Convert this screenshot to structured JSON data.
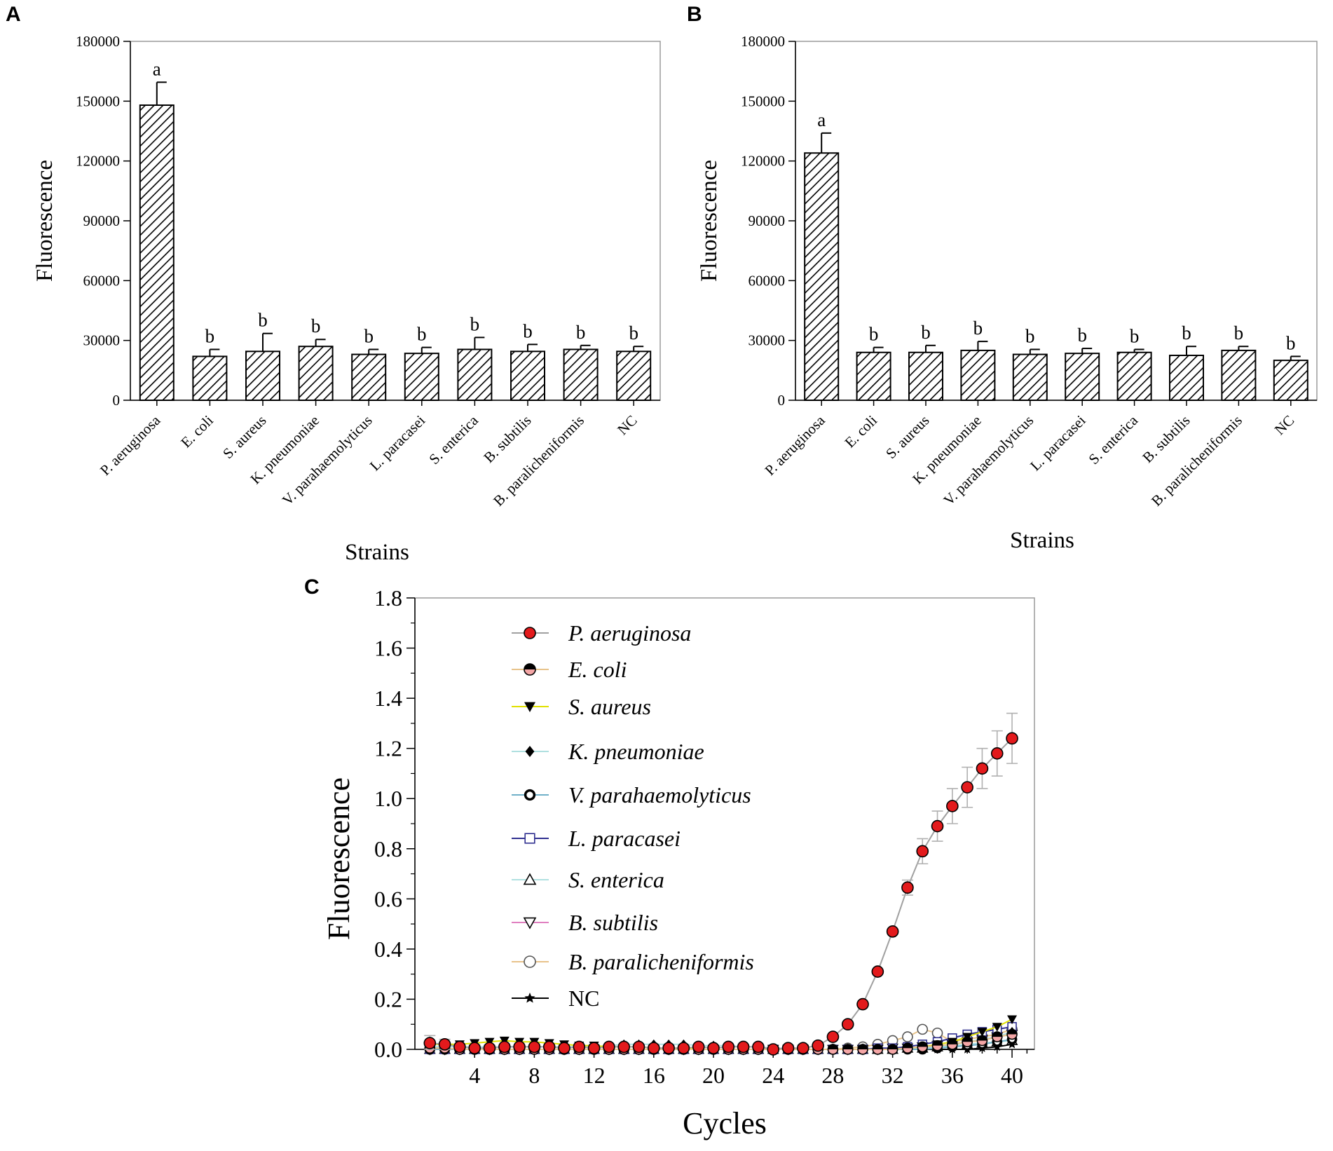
{
  "chart_data": [
    {
      "panel": "A",
      "type": "bar",
      "categories": [
        "P. aeruginosa",
        "E. coli",
        "S. aureus",
        "K. pneumoniae",
        "V. parahaemolyticus",
        "L. paracasei",
        "S. enterica",
        "B. subtilis",
        "B. paralicheniformis",
        "NC"
      ],
      "values": [
        148000,
        22000,
        24500,
        27000,
        23000,
        23500,
        25500,
        24500,
        25500,
        24500
      ],
      "errors": [
        11500,
        3500,
        9000,
        3500,
        2500,
        3000,
        6000,
        3500,
        2000,
        2500
      ],
      "significance": [
        "a",
        "b",
        "b",
        "b",
        "b",
        "b",
        "b",
        "b",
        "b",
        "b"
      ],
      "xlabel": "Strains",
      "ylabel": "Fluorescence",
      "ylim": [
        0,
        180000
      ],
      "yticks": [
        "0",
        "30000",
        "60000",
        "90000",
        "120000",
        "150000",
        "180000"
      ],
      "yticks_values": [
        0,
        30000,
        60000,
        90000,
        120000,
        150000,
        180000
      ]
    },
    {
      "panel": "B",
      "type": "bar",
      "categories": [
        "P. aeruginosa",
        "E. coli",
        "S. aureus",
        "K. pneumoniae",
        "V. parahaemolyticus",
        "L. paracasei",
        "S. enterica",
        "B. subtilis",
        "B. paralicheniformis",
        "NC"
      ],
      "values": [
        124000,
        24000,
        24000,
        25000,
        23000,
        23500,
        24000,
        22500,
        25000,
        20000
      ],
      "errors": [
        10000,
        2500,
        3500,
        4500,
        2500,
        2500,
        1500,
        4500,
        2000,
        2000
      ],
      "significance": [
        "a",
        "b",
        "b",
        "b",
        "b",
        "b",
        "b",
        "b",
        "b",
        "b"
      ],
      "xlabel": "Strains",
      "ylabel": "Fluorescence",
      "ylim": [
        0,
        180000
      ],
      "yticks": [
        "0",
        "30000",
        "60000",
        "90000",
        "120000",
        "150000",
        "180000"
      ],
      "yticks_values": [
        0,
        30000,
        60000,
        90000,
        120000,
        150000,
        180000
      ]
    },
    {
      "panel": "C",
      "type": "line",
      "xlabel": "Cycles",
      "ylabel": "Fluorescence",
      "xlim": [
        0,
        41.5
      ],
      "ylim": [
        0,
        1.8
      ],
      "xticks": [
        "4",
        "8",
        "12",
        "16",
        "20",
        "24",
        "28",
        "32",
        "36",
        "40"
      ],
      "xticks_values": [
        4,
        8,
        12,
        16,
        20,
        24,
        28,
        32,
        36,
        40
      ],
      "yticks": [
        "0.0",
        "0.2",
        "0.4",
        "0.6",
        "0.8",
        "1.0",
        "1.2",
        "1.4",
        "1.6",
        "1.8"
      ],
      "yticks_values": [
        0,
        0.2,
        0.4,
        0.6,
        0.8,
        1.0,
        1.2,
        1.4,
        1.6,
        1.8
      ],
      "x": [
        1,
        2,
        3,
        4,
        5,
        6,
        7,
        8,
        9,
        10,
        11,
        12,
        13,
        14,
        15,
        16,
        17,
        18,
        19,
        20,
        21,
        22,
        23,
        24,
        25,
        26,
        27,
        28,
        29,
        30,
        31,
        32,
        33,
        34,
        35,
        36,
        37,
        38,
        39,
        40
      ],
      "series": [
        {
          "name": "P. aeruginosa",
          "marker": "circle-filled",
          "color": "#e31a1c",
          "line": "#a0a0a0",
          "italic": true,
          "values": [
            0.025,
            0.02,
            0.01,
            0.005,
            0.005,
            0.01,
            0.01,
            0.01,
            0.01,
            0.005,
            0.01,
            0.005,
            0.01,
            0.01,
            0.01,
            0.005,
            0.005,
            0.005,
            0.01,
            0.005,
            0.01,
            0.01,
            0.01,
            0.0,
            0.005,
            0.005,
            0.015,
            0.05,
            0.1,
            0.18,
            0.31,
            0.47,
            0.645,
            0.79,
            0.89,
            0.97,
            1.045,
            1.12,
            1.18,
            1.24
          ],
          "errors": [
            0.03,
            0.02,
            0.01,
            0,
            0,
            0,
            0,
            0,
            0,
            0,
            0,
            0,
            0,
            0,
            0,
            0,
            0,
            0,
            0,
            0,
            0,
            0,
            0,
            0,
            0,
            0,
            0,
            0,
            0,
            0,
            0,
            0.01,
            0.03,
            0.05,
            0.06,
            0.07,
            0.08,
            0.08,
            0.09,
            0.1
          ]
        },
        {
          "name": "E. coli",
          "marker": "circle-half",
          "color": "#f4a6a6",
          "line": "#e8c38a",
          "italic": true,
          "values": [
            0.005,
            0.005,
            0.0,
            0.0,
            0.0,
            0.0,
            0.0,
            0.0,
            0.0,
            0.0,
            0.0,
            0.0,
            0.0,
            0.0,
            0.0,
            0.0,
            0.0,
            0.0,
            0.0,
            0.0,
            0.0,
            0.0,
            0.0,
            0.0,
            0.0,
            0.0,
            0.0,
            0.0,
            0.0,
            0.0,
            0.0,
            0.0,
            0.005,
            0.01,
            0.015,
            0.02,
            0.03,
            0.035,
            0.05,
            0.06
          ]
        },
        {
          "name": "S. aureus",
          "marker": "triangle-down-filled",
          "color": "#000000",
          "line": "#e0e000",
          "italic": true,
          "values": [
            0.02,
            0.02,
            0.02,
            0.025,
            0.03,
            0.035,
            0.03,
            0.03,
            0.025,
            0.02,
            0.015,
            0.015,
            0.01,
            0.01,
            0.01,
            0.005,
            0.005,
            0.005,
            0.0,
            0.0,
            0.0,
            0.0,
            0.0,
            0.0,
            0.0,
            0.0,
            0.0,
            0.0,
            0.0,
            0.0,
            0.0,
            0.0,
            0.005,
            0.01,
            0.02,
            0.03,
            0.05,
            0.07,
            0.09,
            0.12
          ]
        },
        {
          "name": "K. pneumoniae",
          "marker": "diamond-filled",
          "color": "#000000",
          "line": "#b0e0e0",
          "italic": true,
          "values": [
            0.01,
            0.01,
            0.01,
            0.01,
            0.01,
            0.01,
            0.01,
            0.01,
            0.01,
            0.01,
            0.01,
            0.01,
            0.015,
            0.02,
            0.02,
            0.02,
            0.02,
            0.02,
            0.015,
            0.015,
            0.015,
            0.01,
            0.01,
            0.005,
            0.005,
            0.0,
            0.0,
            0.0,
            0.0,
            0.0,
            0.0,
            0.0,
            0.005,
            0.01,
            0.015,
            0.02,
            0.03,
            0.04,
            0.05,
            0.07
          ]
        },
        {
          "name": "V. parahaemolyticus",
          "marker": "circle-bold-open",
          "color": "#000000",
          "line": "#6fb0c8",
          "italic": true,
          "values": [
            0.0,
            0.0,
            0.0,
            0.0,
            0.0,
            0.0,
            0.0,
            0.0,
            0.0,
            0.0,
            0.0,
            0.0,
            0.0,
            0.0,
            0.0,
            0.0,
            0.0,
            0.0,
            0.0,
            0.0,
            0.0,
            0.0,
            0.0,
            0.0,
            0.0,
            0.0,
            0.0,
            0.0,
            0.0,
            0.0,
            0.0,
            0.0,
            0.0,
            0.0,
            0.005,
            0.01,
            0.015,
            0.02,
            0.03,
            0.04
          ]
        },
        {
          "name": "L. paracasei",
          "marker": "square-open",
          "color": "#303090",
          "line": "#303090",
          "italic": true,
          "values": [
            0.0,
            0.0,
            0.0,
            0.0,
            0.0,
            0.0,
            0.0,
            0.0,
            0.0,
            0.0,
            0.0,
            0.0,
            0.0,
            0.0,
            0.0,
            0.0,
            0.0,
            0.0,
            0.0,
            0.0,
            0.0,
            0.0,
            0.0,
            0.0,
            0.0,
            0.0,
            0.0,
            0.0,
            0.0,
            0.0,
            0.005,
            0.005,
            0.01,
            0.02,
            0.03,
            0.045,
            0.06,
            0.07,
            0.08,
            0.09
          ]
        },
        {
          "name": "S. enterica",
          "marker": "triangle-up-open",
          "color": "#000000",
          "line": "#b0e0e0",
          "italic": true,
          "values": [
            0.0,
            0.0,
            0.0,
            0.0,
            0.0,
            0.0,
            0.0,
            0.0,
            0.0,
            0.0,
            0.0,
            0.0,
            0.0,
            0.0,
            0.0,
            0.0,
            0.0,
            0.0,
            0.0,
            0.0,
            0.0,
            0.0,
            0.0,
            0.0,
            0.0,
            0.0,
            0.0,
            0.0,
            0.0,
            0.0,
            0.0,
            0.0,
            0.005,
            0.005,
            0.01,
            0.015,
            0.02,
            0.025,
            0.03,
            0.035
          ]
        },
        {
          "name": "B. subtilis",
          "marker": "triangle-down-open",
          "color": "#000000",
          "line": "#e080c0",
          "italic": true,
          "values": [
            0.0,
            0.0,
            0.0,
            0.0,
            0.0,
            0.0,
            0.0,
            0.0,
            0.0,
            0.0,
            0.0,
            0.0,
            0.0,
            0.0,
            0.0,
            0.0,
            0.0,
            0.0,
            0.0,
            0.0,
            0.0,
            0.0,
            0.0,
            0.0,
            0.0,
            0.0,
            0.0,
            0.0,
            0.0,
            0.0,
            0.0,
            0.005,
            0.005,
            0.01,
            0.015,
            0.02,
            0.03,
            0.04,
            0.05,
            0.06
          ]
        },
        {
          "name": "B. paralicheniformis",
          "marker": "circle-open",
          "color": "#000000",
          "line": "#e8c38a",
          "italic": true,
          "values": [
            0.0,
            0.0,
            0.0,
            0.0,
            0.0,
            0.0,
            0.0,
            0.0,
            0.0,
            0.0,
            0.0,
            0.0,
            0.0,
            0.0,
            0.0,
            0.0,
            0.0,
            0.0,
            0.0,
            0.0,
            0.0,
            0.0,
            0.0,
            0.0,
            0.0,
            0.0,
            0.0,
            0.0,
            0.005,
            0.01,
            0.02,
            0.035,
            0.05,
            0.08,
            0.065,
            0.03,
            0.04,
            0.05,
            0.06,
            0.08
          ]
        },
        {
          "name": "NC",
          "marker": "star-filled",
          "color": "#000000",
          "line": "#000000",
          "italic": false,
          "values": [
            0.0,
            0.0,
            0.0,
            0.0,
            0.0,
            0.0,
            0.0,
            0.0,
            0.0,
            0.0,
            0.0,
            0.0,
            0.0,
            0.0,
            0.0,
            0.0,
            0.0,
            0.0,
            0.0,
            0.0,
            0.0,
            0.0,
            0.0,
            0.0,
            0.0,
            0.0,
            0.0,
            0.0,
            0.0,
            0.0,
            0.0,
            0.0,
            0.0,
            0.0,
            0.0,
            0.0,
            0.0,
            0.005,
            0.01,
            0.02
          ]
        }
      ]
    }
  ],
  "panel_labels": [
    "A",
    "B",
    "C"
  ]
}
